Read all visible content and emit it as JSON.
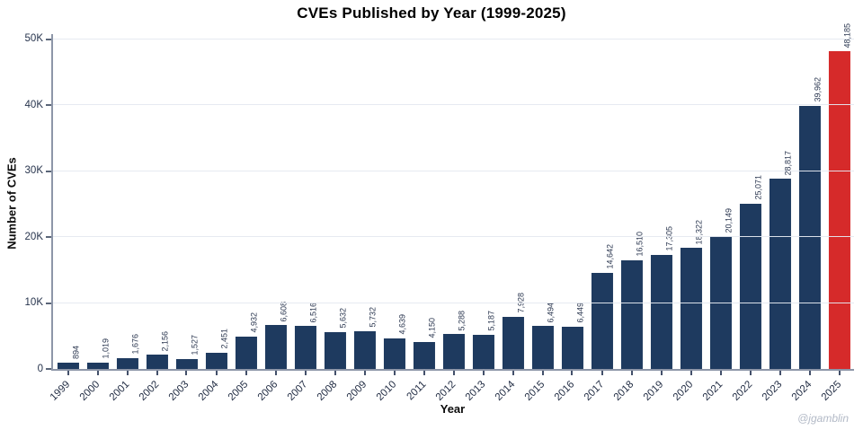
{
  "chart_data": {
    "type": "bar",
    "title": "CVEs Published by Year (1999-2025)",
    "xlabel": "Year",
    "ylabel": "Number of CVEs",
    "categories": [
      "1999",
      "2000",
      "2001",
      "2002",
      "2003",
      "2004",
      "2005",
      "2006",
      "2007",
      "2008",
      "2009",
      "2010",
      "2011",
      "2012",
      "2013",
      "2014",
      "2015",
      "2016",
      "2017",
      "2018",
      "2019",
      "2020",
      "2021",
      "2022",
      "2023",
      "2024",
      "2025"
    ],
    "values": [
      894,
      1019,
      1676,
      2156,
      1527,
      2451,
      4932,
      6608,
      6516,
      5632,
      5732,
      4639,
      4150,
      5288,
      5187,
      7928,
      6494,
      6449,
      14642,
      16510,
      17305,
      18322,
      20149,
      25071,
      28817,
      39962,
      48185
    ],
    "value_labels": [
      "894",
      "1,019",
      "1,676",
      "2,156",
      "1,527",
      "2,451",
      "4,932",
      "6,608",
      "6,516",
      "5,632",
      "5,732",
      "4,639",
      "4,150",
      "5,288",
      "5,187",
      "7,928",
      "6,494",
      "6,449",
      "14,642",
      "16,510",
      "17,305",
      "18,322",
      "20,149",
      "25,071",
      "28,817",
      "39,962",
      "48,185"
    ],
    "ymax": 50000,
    "yticks": [
      {
        "label": "0",
        "value": 0
      },
      {
        "label": "10K",
        "value": 10000
      },
      {
        "label": "20K",
        "value": 20000
      },
      {
        "label": "30K",
        "value": 30000
      },
      {
        "label": "40K",
        "value": 40000
      },
      {
        "label": "50K",
        "value": 50000
      }
    ],
    "grid": "horizontal",
    "legend": "none",
    "bar_color": "#1e3a5f",
    "highlight_category": "2025",
    "highlight_color": "#d62a2a"
  },
  "watermark": "@jgamblin"
}
